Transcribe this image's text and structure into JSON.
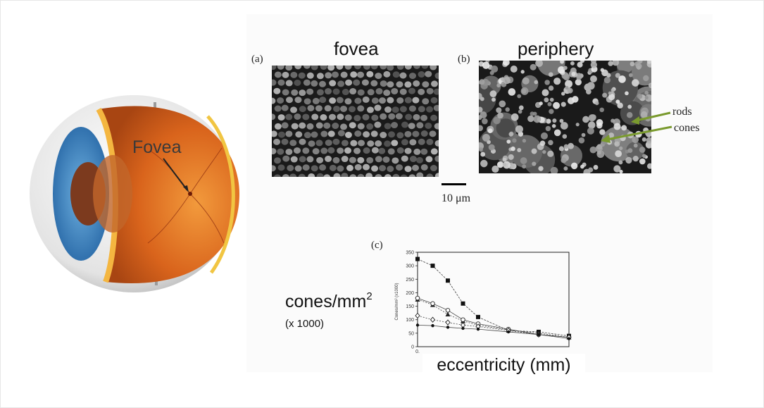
{
  "eye_diagram": {
    "label": "Fovea"
  },
  "panels": {
    "a": {
      "tag": "(a)",
      "title": "fovea"
    },
    "b": {
      "tag": "(b)",
      "title": "periphery"
    },
    "c": {
      "tag": "(c)"
    }
  },
  "annotations": {
    "rods": "rods",
    "cones": "cones",
    "arrow_color": "#7a9a2e"
  },
  "scale_bar": {
    "label": "10 μm"
  },
  "axis_labels": {
    "y_main": "cones/mm",
    "y_sup": "2",
    "y_sub": "(x 1000)",
    "y_small": "Cones/mm² (x1000)",
    "x": "eccentricity (mm)"
  },
  "chart_data": {
    "type": "line",
    "ylim": [
      0,
      350
    ],
    "yticks": [
      "0",
      "50",
      "100",
      "150",
      "200",
      "250",
      "300",
      "350"
    ],
    "xticks": [
      "0."
    ],
    "x": [
      0,
      0.5,
      1,
      1.5,
      2,
      3,
      4,
      5
    ],
    "series": [
      {
        "marker": "square",
        "values": [
          325,
          300,
          245,
          160,
          110,
          60,
          55,
          40
        ]
      },
      {
        "marker": "triangle",
        "values": [
          175,
          155,
          120,
          95,
          80,
          62,
          50,
          35
        ]
      },
      {
        "marker": "circle",
        "values": [
          180,
          160,
          135,
          100,
          85,
          65,
          45,
          35
        ]
      },
      {
        "marker": "diamond",
        "values": [
          115,
          100,
          90,
          80,
          75,
          60,
          45,
          35
        ]
      },
      {
        "marker": "dot",
        "values": [
          80,
          78,
          72,
          68,
          65,
          55,
          45,
          30
        ]
      }
    ],
    "grid": false
  }
}
